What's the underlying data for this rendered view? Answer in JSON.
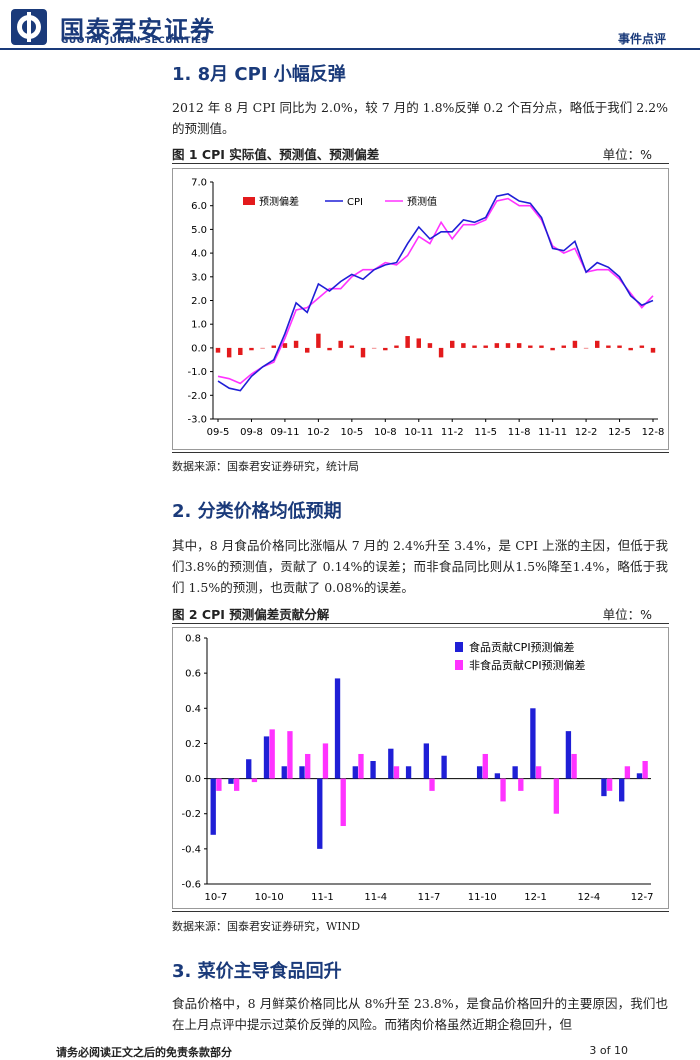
{
  "header": {
    "company_cn": "国泰君安证券",
    "company_en": "GUOTAI JUNAN SECURITIES",
    "doc_type": "事件点评"
  },
  "sections": [
    {
      "title": "1.  8月 CPI 小幅反弹",
      "paragraph": "2012 年 8 月 CPI 同比为 2.0%，较 7 月的 1.8%反弹 0.2 个百分点，略低于我们 2.2%的预测值。"
    },
    {
      "title": "2.  分类价格均低预期",
      "paragraph": "其中，8 月食品价格同比涨幅从 7 月的 2.4%升至 3.4%，是 CPI 上涨的主因，但低于我们3.8%的预测值，贡献了 0.14%的误差；而非食品同比则从1.5%降至1.4%，略低于我们 1.5%的预测，也贡献了 0.08%的误差。"
    },
    {
      "title": "3.  菜价主导食品回升",
      "paragraph": "食品价格中，8 月鲜菜价格同比从 8%升至 23.8%，是食品价格回升的主要原因，我们也在上月点评中提示过菜价反弹的风险。而猪肉价格虽然近期企稳回升，但"
    }
  ],
  "figures": [
    {
      "title": "图 1 CPI 实际值、预测值、预测偏差",
      "unit": "单位：%",
      "source": "数据来源：国泰君安证券研究，统计局"
    },
    {
      "title": "图 2 CPI 预测偏差贡献分解",
      "unit": "单位：%",
      "source": "数据来源：国泰君安证券研究，WIND"
    }
  ],
  "chart_data": [
    {
      "type": "line",
      "legend": [
        "预测偏差",
        "CPI",
        "预测值"
      ],
      "legend_position": "top-left",
      "colors": {
        "deviation": "#e31a1c",
        "cpi": "#1f1fd6",
        "forecast": "#ff33ff"
      },
      "ylim": [
        -3.0,
        7.0
      ],
      "yticks": [
        "7.0",
        "6.0",
        "5.0",
        "4.0",
        "3.0",
        "2.0",
        "1.0",
        "0.0",
        "-1.0",
        "-2.0",
        "-3.0"
      ],
      "xticks": [
        "09-5",
        "09-8",
        "09-11",
        "10-2",
        "10-5",
        "10-8",
        "10-11",
        "11-2",
        "11-5",
        "11-8",
        "11-11",
        "12-2",
        "12-5",
        "12-8"
      ],
      "x": [
        "09-5",
        "09-6",
        "09-7",
        "09-8",
        "09-9",
        "09-10",
        "09-11",
        "09-12",
        "10-1",
        "10-2",
        "10-3",
        "10-4",
        "10-5",
        "10-6",
        "10-7",
        "10-8",
        "10-9",
        "10-10",
        "10-11",
        "10-12",
        "11-1",
        "11-2",
        "11-3",
        "11-4",
        "11-5",
        "11-6",
        "11-7",
        "11-8",
        "11-9",
        "11-10",
        "11-11",
        "11-12",
        "12-1",
        "12-2",
        "12-3",
        "12-4",
        "12-5",
        "12-6",
        "12-7",
        "12-8"
      ],
      "series": [
        {
          "name": "CPI",
          "values": [
            -1.4,
            -1.7,
            -1.8,
            -1.2,
            -0.8,
            -0.5,
            0.6,
            1.9,
            1.5,
            2.7,
            2.4,
            2.8,
            3.1,
            2.9,
            3.3,
            3.5,
            3.6,
            4.4,
            5.1,
            4.6,
            4.9,
            4.9,
            5.4,
            5.3,
            5.5,
            6.4,
            6.5,
            6.2,
            6.1,
            5.5,
            4.2,
            4.1,
            4.5,
            3.2,
            3.6,
            3.4,
            3.0,
            2.2,
            1.8,
            2.0
          ]
        },
        {
          "name": "预测值",
          "values": [
            -1.2,
            -1.3,
            -1.5,
            -1.1,
            -0.8,
            -0.6,
            0.4,
            1.6,
            1.7,
            2.1,
            2.5,
            2.5,
            3.0,
            3.3,
            3.3,
            3.6,
            3.5,
            3.9,
            4.7,
            4.4,
            5.3,
            4.6,
            5.2,
            5.2,
            5.4,
            6.2,
            6.3,
            6.0,
            6.0,
            5.4,
            4.3,
            4.0,
            4.2,
            3.2,
            3.3,
            3.3,
            2.9,
            2.3,
            1.7,
            2.2
          ]
        },
        {
          "name": "预测偏差",
          "values": [
            -0.2,
            -0.4,
            -0.3,
            -0.1,
            0.0,
            0.1,
            0.2,
            0.3,
            -0.2,
            0.6,
            -0.1,
            0.3,
            0.1,
            -0.4,
            0.0,
            -0.1,
            0.1,
            0.5,
            0.4,
            0.2,
            -0.4,
            0.3,
            0.2,
            0.1,
            0.1,
            0.2,
            0.2,
            0.2,
            0.1,
            0.1,
            -0.1,
            0.1,
            0.3,
            0.0,
            0.3,
            0.1,
            0.1,
            -0.1,
            0.1,
            -0.2
          ]
        }
      ]
    },
    {
      "type": "bar",
      "legend": [
        "食品贡献CPI预测偏差",
        "非食品贡献CPI预测偏差"
      ],
      "legend_position": "top-right",
      "colors": {
        "food": "#1f1fd6",
        "nonfood": "#ff33ff"
      },
      "ylim": [
        -0.6,
        0.8
      ],
      "yticks": [
        "0.8",
        "0.6",
        "0.4",
        "0.2",
        "0.0",
        "-0.2",
        "-0.4",
        "-0.6"
      ],
      "xticks": [
        "10-7",
        "10-10",
        "11-1",
        "11-4",
        "11-7",
        "11-10",
        "12-1",
        "12-4",
        "12-7"
      ],
      "categories": [
        "10-7",
        "10-8",
        "10-9",
        "10-10",
        "10-11",
        "10-12",
        "11-1",
        "11-2",
        "11-3",
        "11-4",
        "11-5",
        "11-6",
        "11-7",
        "11-8",
        "11-9",
        "11-10",
        "11-11",
        "11-12",
        "12-1",
        "12-2",
        "12-3",
        "12-4",
        "12-5",
        "12-6",
        "12-7"
      ],
      "series": [
        {
          "name": "食品贡献CPI预测偏差",
          "values": [
            -0.32,
            -0.03,
            0.11,
            0.24,
            0.07,
            0.07,
            -0.4,
            0.57,
            0.07,
            0.1,
            0.17,
            0.07,
            0.2,
            0.13,
            0.0,
            0.07,
            0.03,
            0.07,
            0.4,
            0.0,
            0.27,
            0.0,
            -0.1,
            -0.13,
            0.03
          ]
        },
        {
          "name": "非食品贡献CPI预测偏差",
          "values": [
            -0.07,
            -0.07,
            -0.02,
            0.28,
            0.27,
            0.14,
            0.2,
            -0.27,
            0.14,
            0.0,
            0.07,
            0.0,
            -0.07,
            0.0,
            0.0,
            0.14,
            -0.13,
            -0.07,
            0.07,
            -0.2,
            0.14,
            0.0,
            -0.07,
            0.07,
            0.1
          ]
        }
      ]
    }
  ],
  "footer": {
    "disclaimer": "请务必阅读正文之后的免责条款部分",
    "page": "3 of 10"
  }
}
